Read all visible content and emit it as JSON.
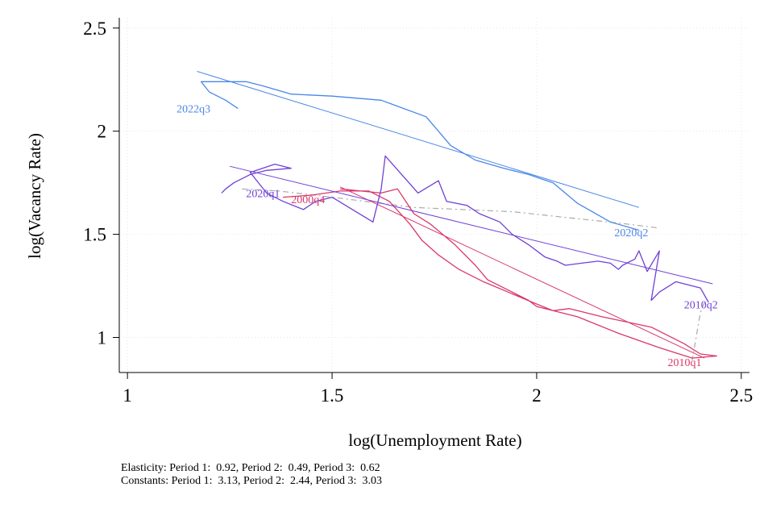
{
  "chart_data": {
    "type": "line",
    "xlabel": "log(Unemployment Rate)",
    "ylabel": "log(Vacancy Rate)",
    "xlim": [
      0.98,
      2.52
    ],
    "ylim": [
      0.83,
      2.55
    ],
    "xticks": [
      {
        "value": 1,
        "label": "1"
      },
      {
        "value": 1.5,
        "label": "1.5"
      },
      {
        "value": 2,
        "label": "2"
      },
      {
        "value": 2.5,
        "label": "2.5"
      }
    ],
    "yticks": [
      {
        "value": 1,
        "label": "1"
      },
      {
        "value": 1.5,
        "label": "1.5"
      },
      {
        "value": 2,
        "label": "2"
      },
      {
        "value": 2.5,
        "label": "2.5"
      }
    ],
    "grid": true,
    "colors": {
      "period1": "#d9386a",
      "period2": "#7140d6",
      "period3": "#4a86e8",
      "connector": "#aaaaaa"
    },
    "series": [
      {
        "role": "period1",
        "values": [
          [
            1.52,
            1.72
          ],
          [
            1.62,
            1.7
          ],
          [
            1.66,
            1.72
          ],
          [
            1.7,
            1.6
          ],
          [
            1.74,
            1.55
          ],
          [
            1.8,
            1.45
          ],
          [
            1.85,
            1.35
          ],
          [
            1.88,
            1.28
          ],
          [
            1.94,
            1.22
          ],
          [
            1.98,
            1.18
          ],
          [
            2.0,
            1.15
          ],
          [
            2.04,
            1.13
          ],
          [
            2.08,
            1.14
          ],
          [
            2.16,
            1.1
          ],
          [
            2.28,
            1.05
          ],
          [
            2.36,
            0.97
          ],
          [
            2.4,
            0.92
          ],
          [
            2.44,
            0.91
          ],
          [
            2.38,
            0.9
          ],
          [
            2.3,
            0.95
          ],
          [
            2.2,
            1.02
          ],
          [
            2.1,
            1.1
          ],
          [
            2.04,
            1.13
          ],
          [
            1.99,
            1.17
          ],
          [
            1.93,
            1.22
          ],
          [
            1.87,
            1.27
          ],
          [
            1.81,
            1.33
          ],
          [
            1.76,
            1.4
          ],
          [
            1.72,
            1.47
          ],
          [
            1.69,
            1.55
          ],
          [
            1.64,
            1.66
          ],
          [
            1.59,
            1.71
          ],
          [
            1.52,
            1.71
          ],
          [
            1.45,
            1.69
          ],
          [
            1.38,
            1.68
          ]
        ],
        "fit": [
          [
            1.52,
            1.73
          ],
          [
            2.41,
            0.9
          ]
        ]
      },
      {
        "role": "period2",
        "values": [
          [
            2.42,
            1.17
          ],
          [
            2.4,
            1.24
          ],
          [
            2.34,
            1.27
          ],
          [
            2.3,
            1.22
          ],
          [
            2.28,
            1.18
          ],
          [
            2.3,
            1.42
          ],
          [
            2.27,
            1.32
          ],
          [
            2.25,
            1.42
          ],
          [
            2.24,
            1.38
          ],
          [
            2.21,
            1.35
          ],
          [
            2.2,
            1.33
          ],
          [
            2.18,
            1.36
          ],
          [
            2.15,
            1.37
          ],
          [
            2.11,
            1.36
          ],
          [
            2.07,
            1.35
          ],
          [
            2.05,
            1.37
          ],
          [
            2.02,
            1.39
          ],
          [
            1.98,
            1.45
          ],
          [
            1.94,
            1.5
          ],
          [
            1.91,
            1.56
          ],
          [
            1.86,
            1.6
          ],
          [
            1.83,
            1.64
          ],
          [
            1.78,
            1.66
          ],
          [
            1.76,
            1.76
          ],
          [
            1.71,
            1.7
          ],
          [
            1.67,
            1.79
          ],
          [
            1.63,
            1.88
          ],
          [
            1.62,
            1.72
          ],
          [
            1.6,
            1.56
          ],
          [
            1.55,
            1.62
          ],
          [
            1.5,
            1.68
          ],
          [
            1.46,
            1.66
          ],
          [
            1.43,
            1.62
          ],
          [
            1.38,
            1.66
          ],
          [
            1.34,
            1.7
          ],
          [
            1.3,
            1.8
          ],
          [
            1.36,
            1.84
          ],
          [
            1.4,
            1.82
          ],
          [
            1.34,
            1.81
          ],
          [
            1.3,
            1.79
          ],
          [
            1.26,
            1.75
          ],
          [
            1.24,
            1.72
          ],
          [
            1.23,
            1.7
          ]
        ],
        "fit": [
          [
            1.25,
            1.83
          ],
          [
            2.43,
            1.26
          ]
        ]
      },
      {
        "role": "period3",
        "values": [
          [
            2.25,
            1.52
          ],
          [
            2.18,
            1.56
          ],
          [
            2.1,
            1.65
          ],
          [
            2.04,
            1.75
          ],
          [
            1.98,
            1.79
          ],
          [
            1.92,
            1.82
          ],
          [
            1.85,
            1.86
          ],
          [
            1.79,
            1.93
          ],
          [
            1.73,
            2.07
          ],
          [
            1.62,
            2.15
          ],
          [
            1.5,
            2.17
          ],
          [
            1.4,
            2.18
          ],
          [
            1.33,
            2.22
          ],
          [
            1.29,
            2.24
          ],
          [
            1.18,
            2.24
          ],
          [
            1.2,
            2.19
          ],
          [
            1.24,
            2.15
          ],
          [
            1.27,
            2.11
          ]
        ],
        "fit": [
          [
            1.17,
            2.29
          ],
          [
            2.25,
            1.63
          ]
        ]
      },
      {
        "role": "connector",
        "values": [
          [
            1.28,
            1.72
          ],
          [
            1.37,
            1.71
          ],
          [
            1.5,
            1.68
          ],
          [
            1.7,
            1.63
          ],
          [
            1.94,
            1.61
          ],
          [
            2.22,
            1.55
          ],
          [
            2.3,
            1.53
          ]
        ]
      },
      {
        "role": "connector",
        "values": [
          [
            2.41,
            1.17
          ],
          [
            2.4,
            1.12
          ],
          [
            2.38,
            0.89
          ]
        ]
      }
    ],
    "labels": [
      {
        "text": "2022q3",
        "x": 1.12,
        "y": 2.11,
        "role": "period3"
      },
      {
        "text": "2020q2",
        "x": 2.19,
        "y": 1.51,
        "role": "period3"
      },
      {
        "text": "2020q1",
        "x": 1.29,
        "y": 1.7,
        "role": "period2"
      },
      {
        "text": "2010q2",
        "x": 2.36,
        "y": 1.16,
        "role": "period2"
      },
      {
        "text": "2000q4",
        "x": 1.4,
        "y": 1.67,
        "role": "period1"
      },
      {
        "text": "2010q1",
        "x": 2.32,
        "y": 0.88,
        "role": "period1"
      }
    ]
  },
  "notes": {
    "line1": "Elasticity: Period 1:  0.92, Period 2:  0.49, Period 3:  0.62",
    "line2": "Constants: Period 1:  3.13, Period 2:  2.44, Period 3:  3.03"
  }
}
